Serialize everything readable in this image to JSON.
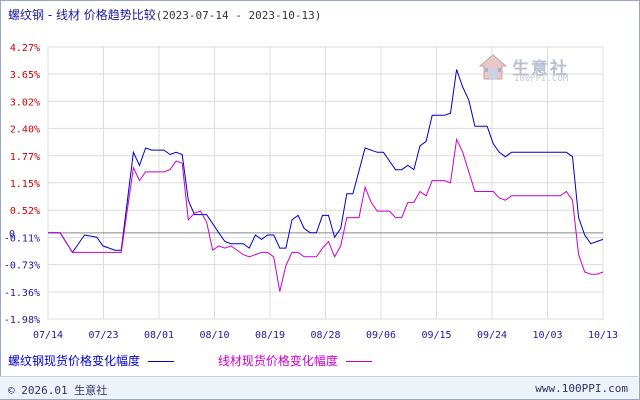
{
  "header": {
    "title": "螺纹钢 - 线材 价格趋势比较",
    "date_range": "(2023-07-14 - 2023-10-13)"
  },
  "watermark": {
    "brand": "生意社",
    "url": "100PPI.COM",
    "icon": "house-logo-icon"
  },
  "legend": [
    {
      "label": "螺纹钢现货价格变化幅度",
      "color": "#0000cc"
    },
    {
      "label": "线材现货价格变化幅度",
      "color": "#cc00cc"
    }
  ],
  "footer": {
    "copyright": "© 2026.01 生意社",
    "site": "www.100PPI.com"
  },
  "chart_data": {
    "type": "line",
    "title": "螺纹钢 - 线材 价格趋势比较",
    "xlabel": "",
    "ylabel": "",
    "x_tick_labels": [
      "07/14",
      "07/23",
      "08/01",
      "08/10",
      "08/19",
      "08/28",
      "09/06",
      "09/15",
      "09/24",
      "10/03",
      "10/13"
    ],
    "y_tick_labels": [
      "4.27%",
      "3.65%",
      "3.02%",
      "2.40%",
      "1.77%",
      "1.15%",
      "0.52%",
      "-0.11%",
      "-0.73%",
      "-1.36%",
      "-1.98%"
    ],
    "y_ticks": [
      4.27,
      3.65,
      3.02,
      2.4,
      1.77,
      1.15,
      0.52,
      -0.11,
      -0.73,
      -1.36,
      -1.98
    ],
    "ylim": [
      -1.98,
      4.27
    ],
    "zero_line": true,
    "zero_label": "0",
    "grid": true,
    "legend_position": "bottom",
    "x_day_range": [
      0,
      91
    ],
    "series": [
      {
        "name": "螺纹钢现货价格变化幅度",
        "color": "#0000cc",
        "points": [
          [
            0,
            0.0
          ],
          [
            2,
            0.0
          ],
          [
            4,
            -0.45
          ],
          [
            6,
            -0.05
          ],
          [
            8,
            -0.1
          ],
          [
            9,
            -0.3
          ],
          [
            11,
            -0.4
          ],
          [
            12,
            -0.4
          ],
          [
            14,
            1.85
          ],
          [
            15,
            1.55
          ],
          [
            16,
            1.95
          ],
          [
            17,
            1.9
          ],
          [
            19,
            1.9
          ],
          [
            20,
            1.8
          ],
          [
            21,
            1.85
          ],
          [
            22,
            1.8
          ],
          [
            23,
            0.75
          ],
          [
            24,
            0.42
          ],
          [
            26,
            0.42
          ],
          [
            28,
            0.0
          ],
          [
            29,
            -0.2
          ],
          [
            30,
            -0.25
          ],
          [
            32,
            -0.25
          ],
          [
            33,
            -0.35
          ],
          [
            34,
            -0.05
          ],
          [
            35,
            -0.15
          ],
          [
            36,
            -0.05
          ],
          [
            37,
            -0.05
          ],
          [
            38,
            -0.35
          ],
          [
            39,
            -0.35
          ],
          [
            40,
            0.3
          ],
          [
            41,
            0.4
          ],
          [
            42,
            0.1
          ],
          [
            43,
            0.0
          ],
          [
            44,
            0.0
          ],
          [
            45,
            0.4
          ],
          [
            46,
            0.4
          ],
          [
            47,
            -0.1
          ],
          [
            48,
            0.1
          ],
          [
            49,
            0.9
          ],
          [
            50,
            0.9
          ],
          [
            52,
            1.95
          ],
          [
            54,
            1.85
          ],
          [
            55,
            1.85
          ],
          [
            56,
            1.65
          ],
          [
            57,
            1.45
          ],
          [
            58,
            1.45
          ],
          [
            59,
            1.55
          ],
          [
            60,
            1.45
          ],
          [
            61,
            2.0
          ],
          [
            62,
            2.1
          ],
          [
            63,
            2.7
          ],
          [
            65,
            2.7
          ],
          [
            66,
            2.75
          ],
          [
            67,
            3.75
          ],
          [
            68,
            3.35
          ],
          [
            69,
            3.05
          ],
          [
            70,
            2.45
          ],
          [
            72,
            2.45
          ],
          [
            73,
            2.05
          ],
          [
            74,
            1.85
          ],
          [
            75,
            1.75
          ],
          [
            76,
            1.85
          ],
          [
            84,
            1.85
          ],
          [
            85,
            1.85
          ],
          [
            86,
            1.75
          ],
          [
            87,
            0.35
          ],
          [
            88,
            -0.05
          ],
          [
            89,
            -0.25
          ],
          [
            90,
            -0.2
          ],
          [
            91,
            -0.15
          ]
        ]
      },
      {
        "name": "线材现货价格变化幅度",
        "color": "#cc00cc",
        "points": [
          [
            0,
            0.0
          ],
          [
            2,
            0.0
          ],
          [
            4,
            -0.45
          ],
          [
            6,
            -0.45
          ],
          [
            7,
            -0.45
          ],
          [
            8,
            -0.45
          ],
          [
            9,
            -0.45
          ],
          [
            12,
            -0.45
          ],
          [
            14,
            1.5
          ],
          [
            15,
            1.2
          ],
          [
            16,
            1.4
          ],
          [
            17,
            1.4
          ],
          [
            19,
            1.4
          ],
          [
            20,
            1.45
          ],
          [
            21,
            1.65
          ],
          [
            22,
            1.6
          ],
          [
            23,
            0.3
          ],
          [
            24,
            0.45
          ],
          [
            25,
            0.5
          ],
          [
            26,
            0.25
          ],
          [
            27,
            -0.4
          ],
          [
            28,
            -0.3
          ],
          [
            29,
            -0.35
          ],
          [
            30,
            -0.3
          ],
          [
            32,
            -0.5
          ],
          [
            33,
            -0.55
          ],
          [
            34,
            -0.5
          ],
          [
            35,
            -0.45
          ],
          [
            36,
            -0.45
          ],
          [
            37,
            -0.55
          ],
          [
            38,
            -1.35
          ],
          [
            39,
            -0.75
          ],
          [
            40,
            -0.45
          ],
          [
            41,
            -0.45
          ],
          [
            42,
            -0.55
          ],
          [
            44,
            -0.55
          ],
          [
            45,
            -0.35
          ],
          [
            46,
            -0.2
          ],
          [
            47,
            -0.55
          ],
          [
            48,
            -0.3
          ],
          [
            49,
            0.35
          ],
          [
            50,
            0.35
          ],
          [
            51,
            0.35
          ],
          [
            52,
            1.05
          ],
          [
            53,
            0.7
          ],
          [
            54,
            0.5
          ],
          [
            56,
            0.5
          ],
          [
            57,
            0.35
          ],
          [
            58,
            0.35
          ],
          [
            59,
            0.7
          ],
          [
            60,
            0.7
          ],
          [
            61,
            0.95
          ],
          [
            62,
            0.85
          ],
          [
            63,
            1.2
          ],
          [
            65,
            1.2
          ],
          [
            66,
            1.15
          ],
          [
            67,
            2.15
          ],
          [
            68,
            1.85
          ],
          [
            69,
            1.4
          ],
          [
            70,
            0.95
          ],
          [
            73,
            0.95
          ],
          [
            74,
            0.8
          ],
          [
            75,
            0.75
          ],
          [
            76,
            0.85
          ],
          [
            84,
            0.85
          ],
          [
            85,
            0.95
          ],
          [
            86,
            0.75
          ],
          [
            87,
            -0.5
          ],
          [
            88,
            -0.9
          ],
          [
            89,
            -0.95
          ],
          [
            90,
            -0.95
          ],
          [
            91,
            -0.9
          ]
        ]
      }
    ]
  }
}
